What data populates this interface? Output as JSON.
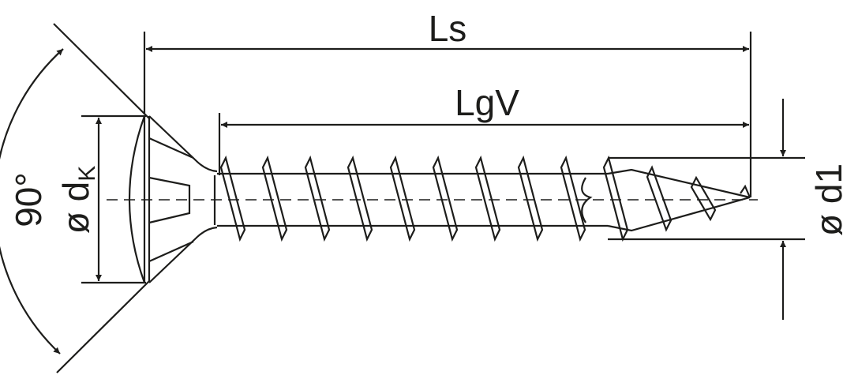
{
  "labels": {
    "overall_length": "Ls",
    "thread_length": "LgV",
    "head_angle": "90°",
    "head_diameter_symbol": "ø d",
    "head_diameter_subscript": "K",
    "thread_diameter": "ø d1"
  },
  "colors": {
    "line": "#1d1d1b",
    "background": "#ffffff"
  }
}
